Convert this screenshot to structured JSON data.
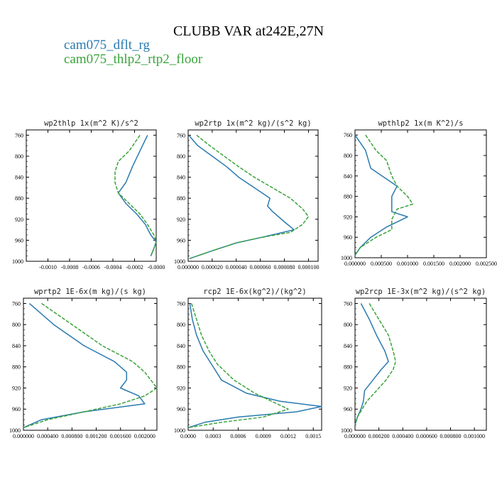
{
  "figure": {
    "title": "CLUBB VAR at242E,27N",
    "legend": [
      {
        "label": "cam075_dflt_rg",
        "color": "#2a7ab0",
        "dash": "solid"
      },
      {
        "label": "cam075_thlp2_rtp2_floor",
        "color": "#3aa33a",
        "dash": "dashed"
      }
    ]
  },
  "chart_data": [
    {
      "type": "line",
      "title": "wp2thlp  1x(m^2 K)/s^2",
      "xlim": [
        -0.0012,
        0.0
      ],
      "ylim": [
        1000,
        750
      ],
      "xticks": [
        -0.001,
        -0.0008,
        -0.0006,
        -0.0004,
        -0.0002,
        -0.0
      ],
      "xticklabels": [
        "-0.0010",
        "-0.0008",
        "-0.0006",
        "-0.0004",
        "-0.0002",
        "-0.0000"
      ],
      "yticks": [
        760,
        800,
        840,
        880,
        920,
        960,
        1000
      ],
      "series": [
        {
          "name": "cam075_dflt_rg",
          "y": [
            760,
            790,
            820,
            850,
            870,
            890,
            910,
            930,
            950,
            963,
            975,
            990
          ],
          "x": [
            -8e-05,
            -0.00015,
            -0.00022,
            -0.00028,
            -0.00035,
            -0.00028,
            -0.00018,
            -0.0001,
            -5e-05,
            0.0,
            -2e-05,
            -5e-05
          ]
        },
        {
          "name": "cam075_thlp2_rtp2_floor",
          "y": [
            760,
            790,
            810,
            830,
            850,
            870,
            890,
            910,
            930,
            950,
            963,
            975,
            990
          ],
          "x": [
            -0.00015,
            -0.00025,
            -0.00035,
            -0.00038,
            -0.00038,
            -0.00035,
            -0.00025,
            -0.00015,
            -8e-05,
            -2e-05,
            0.0,
            -2e-05,
            -5e-05
          ]
        }
      ]
    },
    {
      "type": "line",
      "title": "wp2rtp  1x(m^2 kg)/(s^2 kg)",
      "xlim": [
        0.0,
        0.000108
      ],
      "ylim": [
        1000,
        750
      ],
      "xticks": [
        0.0,
        2e-05,
        4e-05,
        6e-05,
        8e-05,
        0.0001
      ],
      "xticklabels": [
        "0.000000",
        "0.000020",
        "0.000040",
        "0.000060",
        "0.000080",
        "0.000100"
      ],
      "yticks": [
        760,
        800,
        840,
        880,
        920,
        960,
        1000
      ],
      "series": [
        {
          "name": "cam075_dflt_rg",
          "y": [
            760,
            780,
            800,
            820,
            840,
            860,
            880,
            895,
            905,
            925,
            940,
            955,
            965,
            980,
            995
          ],
          "x": [
            5e-07,
            8e-06,
            2e-05,
            3.2e-05,
            4.2e-05,
            5.5e-05,
            6.8e-05,
            6.6e-05,
            7e-05,
            8e-05,
            8.8e-05,
            6e-05,
            4e-05,
            2e-05,
            1e-06
          ]
        },
        {
          "name": "cam075_thlp2_rtp2_floor",
          "y": [
            760,
            780,
            800,
            820,
            840,
            860,
            880,
            900,
            915,
            930,
            945,
            955,
            965,
            980,
            995
          ],
          "x": [
            7e-06,
            1.8e-05,
            3e-05,
            4.2e-05,
            5.5e-05,
            7e-05,
            8.5e-05,
            9.5e-05,
            0.0001,
            9.5e-05,
            8.5e-05,
            6e-05,
            4e-05,
            2e-05,
            1e-06
          ]
        }
      ]
    },
    {
      "type": "line",
      "title": "wpthlp2  1x(m K^2)/s",
      "xlim": [
        0.0,
        0.0025
      ],
      "ylim": [
        1000,
        750
      ],
      "xticks": [
        0.0,
        0.0005,
        0.001,
        0.0015,
        0.002,
        0.0025
      ],
      "xticklabels": [
        "0.000000",
        "0.000500",
        "0.001000",
        "0.001500",
        "0.002000",
        "0.002500"
      ],
      "yticks": [
        760,
        800,
        840,
        880,
        920,
        960,
        1000
      ],
      "series": [
        {
          "name": "cam075_dflt_rg",
          "y": [
            760,
            790,
            825,
            860,
            880,
            895,
            910,
            920,
            940,
            960,
            980,
            995
          ],
          "x": [
            0.0,
            0.0002,
            0.0003,
            0.0008,
            0.0007,
            0.0007,
            0.0007,
            0.001,
            0.0006,
            0.0003,
            0.0001,
            0.0
          ]
        },
        {
          "name": "cam075_thlp2_rtp2_floor",
          "y": [
            760,
            790,
            810,
            840,
            860,
            880,
            895,
            905,
            925,
            945,
            960,
            980,
            995
          ],
          "x": [
            0.0002,
            0.0004,
            0.0006,
            0.0007,
            0.0008,
            0.001,
            0.0011,
            0.0008,
            0.0007,
            0.0007,
            0.0004,
            0.0001,
            0.0
          ]
        }
      ]
    },
    {
      "type": "line",
      "title": "wprtp2  1E-6x(m kg)/(s kg)",
      "xlim": [
        0.0,
        0.0022
      ],
      "ylim": [
        1000,
        750
      ],
      "xticks": [
        0.0,
        0.0004,
        0.0008,
        0.0012,
        0.0016,
        0.002
      ],
      "xticklabels": [
        "0.000000",
        "0.000400",
        "0.000800",
        "0.001200",
        "0.001600",
        "0.002000"
      ],
      "yticks": [
        760,
        800,
        840,
        880,
        920,
        960,
        1000
      ],
      "series": [
        {
          "name": "cam075_dflt_rg",
          "y": [
            760,
            800,
            840,
            870,
            890,
            905,
            920,
            935,
            950,
            965,
            980,
            995
          ],
          "x": [
            0.0001,
            0.0005,
            0.001,
            0.0015,
            0.0017,
            0.0017,
            0.0016,
            0.0019,
            0.002,
            0.001,
            0.0003,
            0.0
          ]
        },
        {
          "name": "cam075_thlp2_rtp2_floor",
          "y": [
            760,
            800,
            840,
            870,
            890,
            905,
            920,
            935,
            950,
            965,
            980,
            995
          ],
          "x": [
            0.0003,
            0.0008,
            0.0013,
            0.0018,
            0.002,
            0.0021,
            0.0022,
            0.002,
            0.0016,
            0.001,
            0.0004,
            0.0
          ]
        }
      ]
    },
    {
      "type": "line",
      "title": "rcp2  1E-6x(kg^2)/(kg^2)",
      "xlim": [
        0.0,
        0.0016
      ],
      "ylim": [
        1000,
        750
      ],
      "xticks": [
        0.0,
        0.0003,
        0.0006,
        0.0009,
        0.0012,
        0.0015
      ],
      "xticklabels": [
        "0.0000",
        "0.0003",
        "0.0006",
        "0.0009",
        "0.0012",
        "0.0015"
      ],
      "yticks": [
        760,
        800,
        840,
        880,
        920,
        960,
        1000
      ],
      "series": [
        {
          "name": "cam075_dflt_rg",
          "y": [
            760,
            790,
            820,
            850,
            875,
            905,
            930,
            945,
            955,
            965,
            975,
            985,
            995
          ],
          "x": [
            2e-05,
            5e-05,
            0.0001,
            0.00018,
            0.00028,
            0.0004,
            0.0007,
            0.0011,
            0.0016,
            0.0013,
            0.0006,
            0.0002,
            0.0
          ]
        },
        {
          "name": "cam075_thlp2_rtp2_floor",
          "y": [
            760,
            790,
            820,
            850,
            875,
            905,
            930,
            945,
            960,
            975,
            985,
            995
          ],
          "x": [
            4e-05,
            0.0001,
            0.00016,
            0.00025,
            0.00035,
            0.00055,
            0.0008,
            0.001,
            0.0012,
            0.0009,
            0.0004,
            0.0
          ]
        }
      ]
    },
    {
      "type": "line",
      "title": "wp2rcp  1E-3x(m^2 kg)/(s^2 kg)",
      "xlim": [
        0.0,
        0.0011
      ],
      "ylim": [
        1000,
        750
      ],
      "xticks": [
        0.0,
        0.0002,
        0.0004,
        0.0006,
        0.0008,
        0.001
      ],
      "xticklabels": [
        "0.000000",
        "0.000200",
        "0.000400",
        "0.000600",
        "0.000800",
        "0.001000"
      ],
      "yticks": [
        760,
        800,
        840,
        880,
        920,
        960,
        1000
      ],
      "series": [
        {
          "name": "cam075_dflt_rg",
          "y": [
            760,
            790,
            820,
            850,
            870,
            885,
            905,
            925,
            945,
            960,
            975,
            990
          ],
          "x": [
            5e-05,
            0.00012,
            0.00018,
            0.00025,
            0.00028,
            0.00022,
            0.00015,
            8e-05,
            7e-05,
            5e-05,
            2e-05,
            0.0
          ]
        },
        {
          "name": "cam075_thlp2_rtp2_floor",
          "y": [
            760,
            790,
            820,
            850,
            870,
            885,
            905,
            925,
            945,
            960,
            975,
            990
          ],
          "x": [
            0.00012,
            0.0002,
            0.00028,
            0.00032,
            0.00034,
            0.00032,
            0.00026,
            0.00018,
            0.0001,
            6e-05,
            2e-05,
            0.0
          ]
        }
      ]
    }
  ]
}
